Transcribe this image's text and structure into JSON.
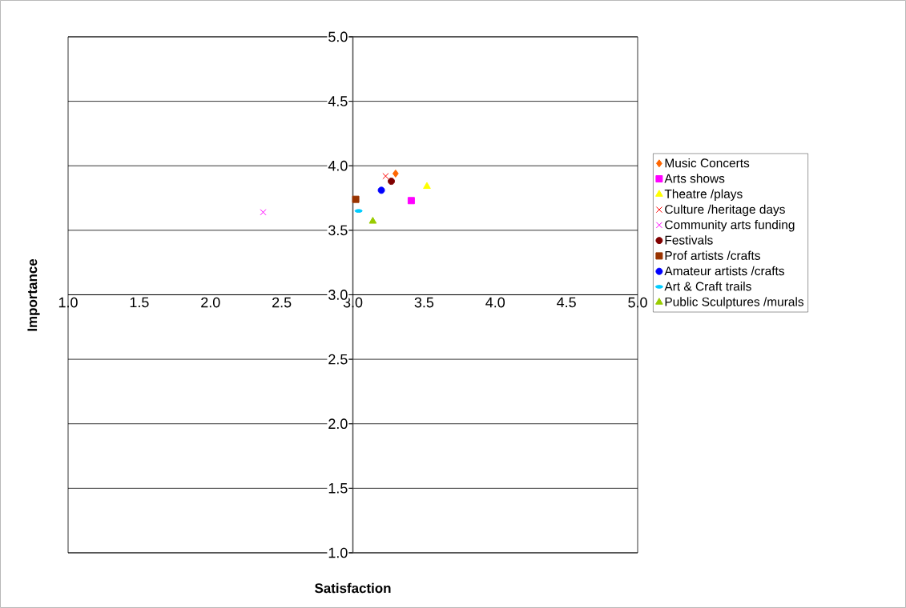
{
  "chart_data": {
    "type": "scatter",
    "xlabel": "Satisfaction",
    "ylabel": "Importance",
    "xlim": [
      1,
      5
    ],
    "ylim": [
      1,
      5
    ],
    "xticks": [
      {
        "value": 1,
        "label": "1.0"
      },
      {
        "value": 1.5,
        "label": "1.5"
      },
      {
        "value": 2,
        "label": "2.0"
      },
      {
        "value": 2.5,
        "label": "2.5"
      },
      {
        "value": 3,
        "label": "3.0"
      },
      {
        "value": 3.5,
        "label": "3.5"
      },
      {
        "value": 4,
        "label": "4.0"
      },
      {
        "value": 4.5,
        "label": "4.5"
      },
      {
        "value": 5,
        "label": "5.0"
      }
    ],
    "yticks": [
      {
        "value": 1,
        "label": "1.0"
      },
      {
        "value": 1.5,
        "label": "1.5"
      },
      {
        "value": 2,
        "label": "2.0"
      },
      {
        "value": 2.5,
        "label": "2.5"
      },
      {
        "value": 3,
        "label": "3.0"
      },
      {
        "value": 3.5,
        "label": "3.5"
      },
      {
        "value": 4,
        "label": "4.0"
      },
      {
        "value": 4.5,
        "label": "4.5"
      },
      {
        "value": 5,
        "label": "5.0"
      }
    ],
    "grid": "y",
    "legend": "right",
    "series": [
      {
        "name": "Music Concerts",
        "color": "#ff6600",
        "marker": "diamond",
        "x": [
          3.3
        ],
        "values": [
          3.94
        ]
      },
      {
        "name": "Arts shows",
        "color": "#ff00ff",
        "marker": "square",
        "x": [
          3.41
        ],
        "values": [
          3.73
        ]
      },
      {
        "name": "Theatre /plays",
        "color": "#ffff00",
        "marker": "triangle",
        "x": [
          3.52
        ],
        "values": [
          3.84
        ]
      },
      {
        "name": "Culture /heritage days",
        "color": "#ff0000",
        "marker": "cross",
        "x": [
          3.23
        ],
        "values": [
          3.92
        ]
      },
      {
        "name": "Community arts funding",
        "color": "#ff00ff",
        "marker": "cross",
        "x": [
          2.37
        ],
        "values": [
          3.64
        ]
      },
      {
        "name": "Festivals",
        "color": "#800000",
        "marker": "circle",
        "x": [
          3.27
        ],
        "values": [
          3.88
        ]
      },
      {
        "name": "Prof artists /crafts",
        "color": "#993300",
        "marker": "square",
        "x": [
          3.02
        ],
        "values": [
          3.74
        ]
      },
      {
        "name": "Amateur artists /crafts",
        "color": "#0000ff",
        "marker": "circle",
        "x": [
          3.2
        ],
        "values": [
          3.81
        ]
      },
      {
        "name": "Art & Craft trails",
        "color": "#00ccff",
        "x": [
          3.04
        ],
        "values": [
          3.65
        ]
      },
      {
        "name": "Public Sculptures /murals",
        "color": "#99cc00",
        "marker": "triangle",
        "x": [
          3.14
        ],
        "values": [
          3.57
        ]
      }
    ]
  }
}
